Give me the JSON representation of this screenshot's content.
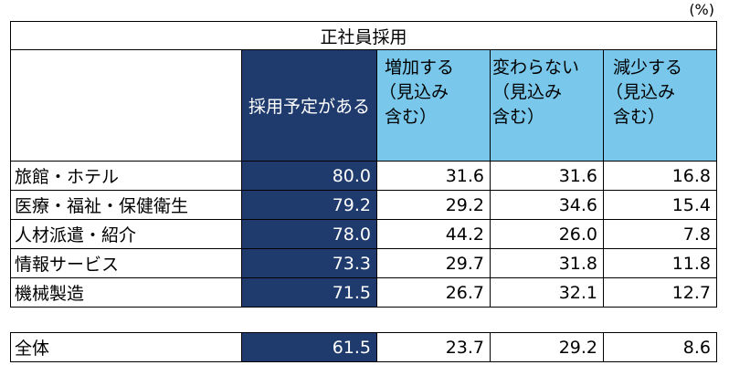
{
  "unit_label": "(%)",
  "chart_data": {
    "type": "table",
    "title": "正社員採用",
    "columns": [
      {
        "lines": [
          "採用予定がある"
        ]
      },
      {
        "lines": [
          "増加する",
          "（見込み",
          "含む）"
        ]
      },
      {
        "lines": [
          "変わらない",
          "（見込み",
          "含む）"
        ]
      },
      {
        "lines": [
          "減少する",
          "（見込み",
          "含む）"
        ]
      }
    ],
    "rows": [
      {
        "label": "旅館・ホテル",
        "values": [
          "80.0",
          "31.6",
          "31.6",
          "16.8"
        ]
      },
      {
        "label": "医療・福祉・保健衛生",
        "values": [
          "79.2",
          "29.2",
          "34.6",
          "15.4"
        ]
      },
      {
        "label": "人材派遣・紹介",
        "values": [
          "78.0",
          "44.2",
          "26.0",
          "7.8"
        ]
      },
      {
        "label": "情報サービス",
        "values": [
          "73.3",
          "29.7",
          "31.8",
          "11.8"
        ]
      },
      {
        "label": "機械製造",
        "values": [
          "71.5",
          "26.7",
          "32.1",
          "12.7"
        ]
      }
    ],
    "total": {
      "label": "全体",
      "values": [
        "61.5",
        "23.7",
        "29.2",
        "8.6"
      ]
    }
  },
  "colors": {
    "dark": "#1f3b6e",
    "light": "#79c8ec"
  }
}
